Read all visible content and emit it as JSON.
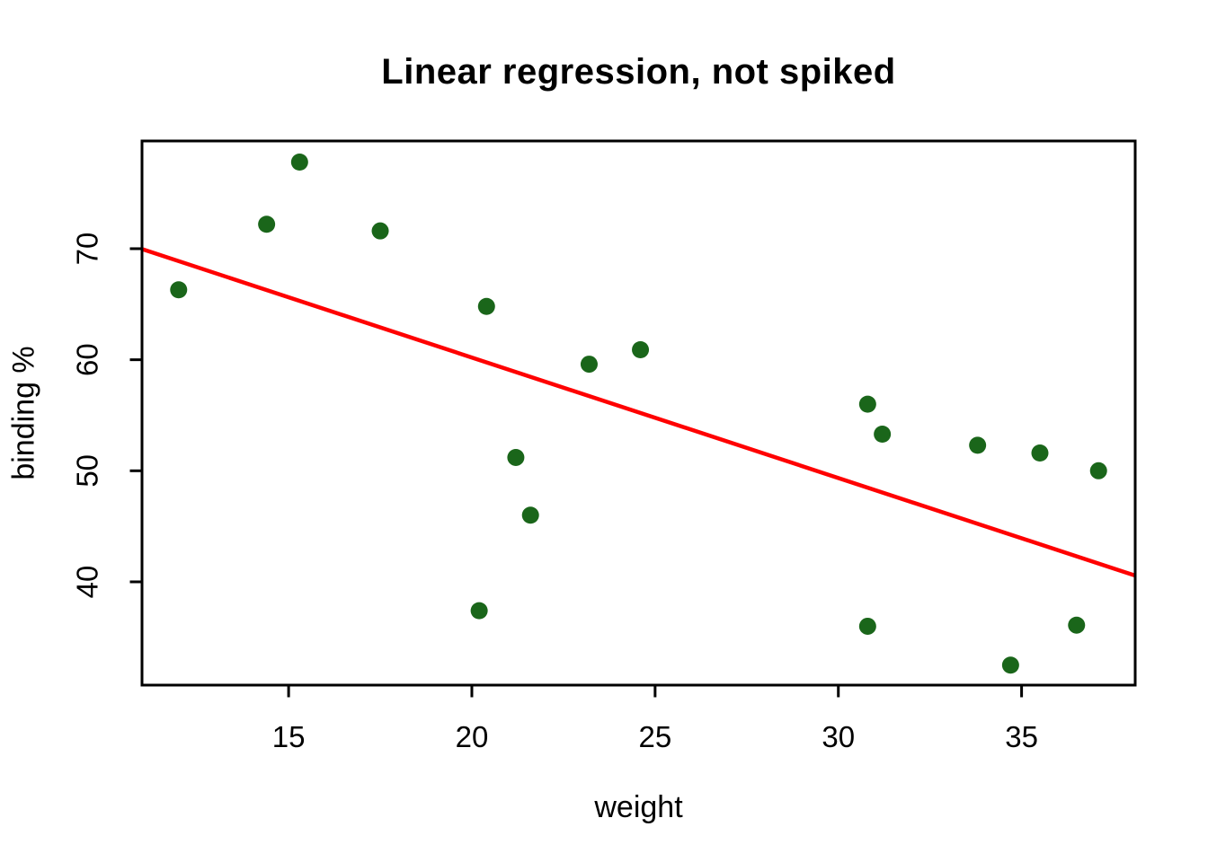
{
  "chart_data": {
    "type": "scatter",
    "title": "Linear regression, not spiked",
    "xlabel": "weight",
    "ylabel": "binding %",
    "x_ticks": [
      15,
      20,
      25,
      30,
      35
    ],
    "y_ticks": [
      40,
      50,
      60,
      70
    ],
    "xlim": [
      11.0,
      38.1
    ],
    "ylim": [
      30.7,
      79.7
    ],
    "grid": false,
    "legend": null,
    "point_color": "#1a661a",
    "axis_color": "#000000",
    "background": "#ffffff",
    "points": [
      [
        12.0,
        66.3
      ],
      [
        14.4,
        72.2
      ],
      [
        15.3,
        77.8
      ],
      [
        17.5,
        71.6
      ],
      [
        20.2,
        37.4
      ],
      [
        20.4,
        64.8
      ],
      [
        21.2,
        51.2
      ],
      [
        21.6,
        46.0
      ],
      [
        23.2,
        59.6
      ],
      [
        24.6,
        60.9
      ],
      [
        30.8,
        36.0
      ],
      [
        30.8,
        56.0
      ],
      [
        31.2,
        53.3
      ],
      [
        33.8,
        52.3
      ],
      [
        34.7,
        32.5
      ],
      [
        35.5,
        51.6
      ],
      [
        36.5,
        36.1
      ],
      [
        37.1,
        50.0
      ]
    ],
    "regression_line": {
      "slope": -1.085,
      "intercept": 81.9,
      "color": "#ff0000"
    }
  }
}
